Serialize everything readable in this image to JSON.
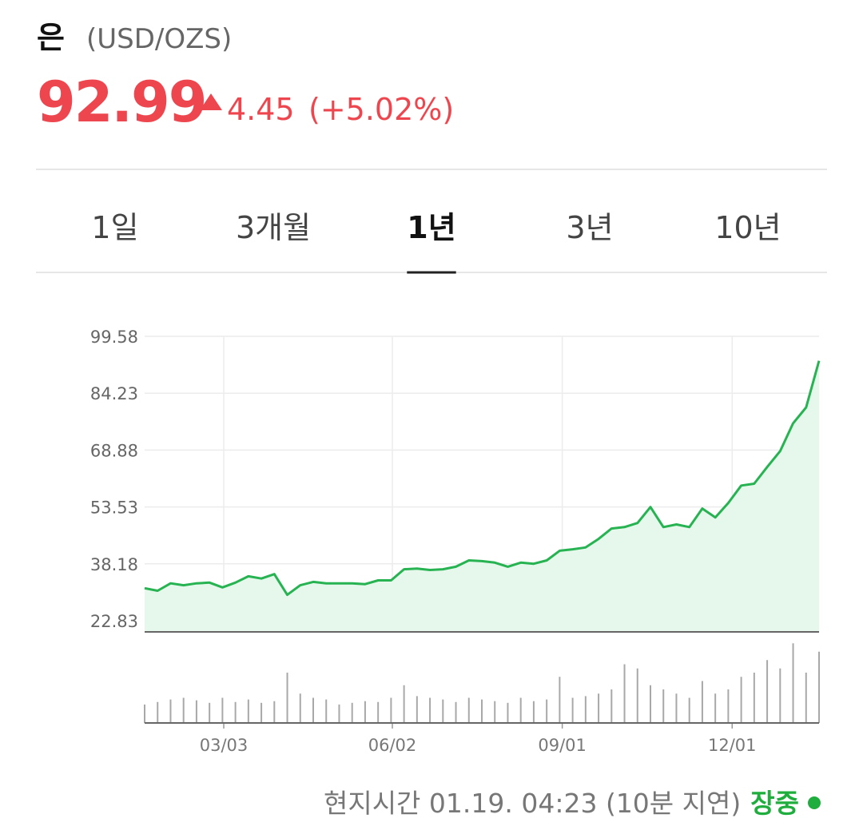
{
  "header": {
    "title": "은",
    "unit": "(USD/OZS)",
    "price": 92.99,
    "change": 4.45,
    "change_pct": "(+5.02%)"
  },
  "tabs": {
    "items": [
      "1일",
      "3개월",
      "1년",
      "3년",
      "10년"
    ],
    "active": 2
  },
  "chart_data": {
    "type": "line",
    "color": "#27b352",
    "fill": "#e5f8eb",
    "xlim": [
      0,
      52
    ],
    "xticks": [
      {
        "value": 6.1,
        "label": "03/03"
      },
      {
        "value": 19.1,
        "label": "06/02"
      },
      {
        "value": 32.2,
        "label": "09/01"
      },
      {
        "value": 45.3,
        "label": "12/01"
      }
    ],
    "ylim": [
      19.8,
      99.58
    ],
    "yticks": [
      22.83,
      38.18,
      53.53,
      68.88,
      84.23,
      99.58
    ],
    "grid": true,
    "x": [
      0,
      1,
      2,
      3,
      4,
      5,
      6,
      7,
      8,
      9,
      10,
      11,
      12,
      13,
      14,
      15,
      16,
      17,
      18,
      19,
      20,
      21,
      22,
      23,
      24,
      25,
      26,
      27,
      28,
      29,
      30,
      31,
      32,
      33,
      34,
      35,
      36,
      37,
      38,
      39,
      40,
      41,
      42,
      43,
      44,
      45,
      46,
      47,
      48,
      49,
      50,
      51,
      52
    ],
    "values": [
      31.6,
      30.9,
      32.9,
      32.4,
      32.9,
      33.1,
      31.8,
      33.1,
      34.8,
      34.2,
      35.4,
      29.8,
      32.4,
      33.3,
      32.9,
      32.9,
      32.9,
      32.7,
      33.7,
      33.7,
      36.7,
      36.9,
      36.5,
      36.7,
      37.4,
      39.1,
      38.9,
      38.5,
      37.4,
      38.5,
      38.2,
      39.1,
      41.7,
      42.1,
      42.6,
      44.9,
      47.7,
      48.1,
      49.2,
      53.5,
      48.1,
      48.8,
      48.1,
      53.1,
      50.7,
      54.6,
      59.3,
      59.8,
      64.3,
      68.6,
      76.1,
      80.4,
      92.99
    ],
    "volume": {
      "color": "#a8a8a8",
      "ylim": [
        0,
        100
      ],
      "values": [
        22,
        25,
        28,
        30,
        27,
        24,
        30,
        25,
        28,
        24,
        26,
        60,
        35,
        30,
        28,
        22,
        24,
        26,
        25,
        30,
        45,
        32,
        30,
        28,
        25,
        30,
        28,
        26,
        24,
        30,
        26,
        28,
        55,
        30,
        32,
        35,
        40,
        70,
        65,
        45,
        40,
        35,
        30,
        50,
        35,
        40,
        55,
        60,
        75,
        65,
        95,
        60,
        85
      ]
    }
  },
  "footer": {
    "time": "현지시간 01.19. 04:23 (10분 지연)",
    "status": "장중"
  }
}
